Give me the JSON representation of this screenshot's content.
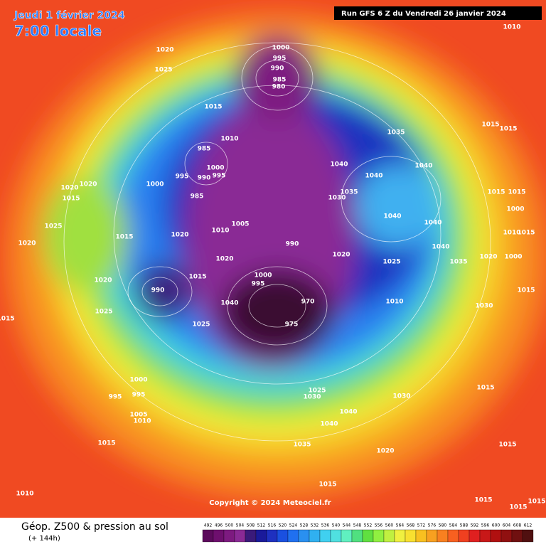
{
  "header": {
    "date": "Jeudi 1 février 2024",
    "time": "7:00 locale",
    "run": "Run GFS 6 Z du Vendredi 26 janvier 2024"
  },
  "copyright": "Copyright © 2024 Meteociel.fr",
  "footer": {
    "title": "Géop. Z500 & pression au sol",
    "lead": "(+ 144h)"
  },
  "scale": {
    "values": [
      492,
      496,
      500,
      504,
      508,
      512,
      516,
      520,
      524,
      528,
      532,
      536,
      540,
      544,
      548,
      552,
      556,
      560,
      564,
      568,
      572,
      576,
      580,
      584,
      588,
      592,
      596,
      600,
      604,
      608,
      612
    ],
    "colors": [
      "#5c0a5c",
      "#6e0f6e",
      "#7d1a80",
      "#8a2a95",
      "#3a1a7a",
      "#1a1a9a",
      "#1e30c0",
      "#1a50e0",
      "#2070f0",
      "#2a90f0",
      "#30b0f0",
      "#40d0f0",
      "#50e0e0",
      "#60f0c0",
      "#50e080",
      "#60e040",
      "#90f040",
      "#c0f040",
      "#f0f040",
      "#f8e030",
      "#f8c020",
      "#f8a020",
      "#f88020",
      "#f86020",
      "#f04020",
      "#e02020",
      "#c81818",
      "#b01010",
      "#901010",
      "#701010",
      "#501010"
    ]
  },
  "isobar_labels": [
    1020,
    1025,
    1000,
    995,
    990,
    985,
    980,
    1015,
    1010,
    985,
    1000,
    995,
    990,
    995,
    1000,
    985,
    1020,
    1020,
    1015,
    1025,
    1015,
    1020,
    1010,
    1005,
    1020,
    990,
    1015,
    1000,
    995,
    990,
    1040,
    975,
    970,
    1025,
    1020,
    1020,
    1025,
    1015,
    1000,
    995,
    995,
    1005,
    1010,
    1015,
    1010,
    1030,
    1035,
    1040,
    1040,
    1040,
    1035,
    1040,
    1040,
    1020,
    1025,
    1035,
    1040,
    1020,
    1000,
    1010,
    1030,
    1015,
    1015,
    1015,
    1000,
    1010,
    1015,
    1015,
    1015,
    1010,
    1030,
    1025,
    1030,
    1040,
    1040,
    1015,
    1035,
    1020,
    1015,
    1015,
    1015,
    1015,
    1015
  ]
}
